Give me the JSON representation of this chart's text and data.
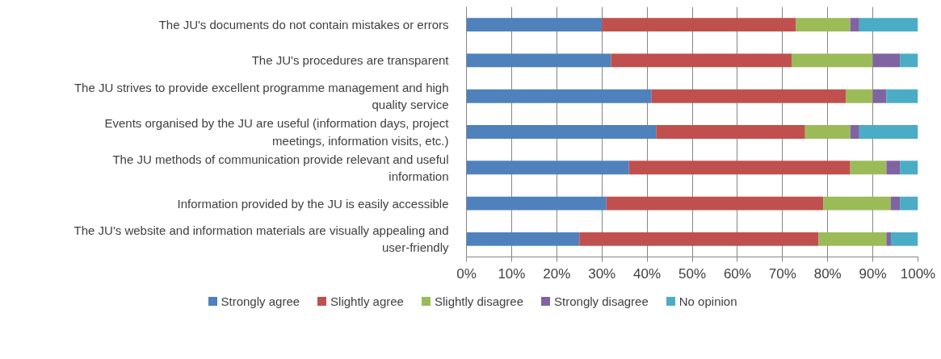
{
  "chart_data": {
    "type": "bar",
    "orientation": "horizontal",
    "stacked": true,
    "categories": [
      "The JU's documents do not contain mistakes or errors",
      "The JU's procedures are transparent",
      "The JU strives to provide excellent programme management and high quality service",
      "Events organised by the JU are useful (information days, project meetings, information visits, etc.)",
      "The JU methods of communication provide relevant and useful information",
      "Information provided by the JU is easily accessible",
      "The JU's website and information materials are visually appealing and user-friendly"
    ],
    "series": [
      {
        "name": "Strongly agree",
        "color": "#4f81bd",
        "values": [
          30,
          32,
          41,
          42,
          36,
          31,
          25
        ]
      },
      {
        "name": "Slightly agree",
        "color": "#c0504d",
        "values": [
          43,
          40,
          43,
          33,
          49,
          48,
          53
        ]
      },
      {
        "name": "Slightly disagree",
        "color": "#9bbb59",
        "values": [
          12,
          18,
          6,
          10,
          8,
          15,
          15
        ]
      },
      {
        "name": "Strongly disagree",
        "color": "#8064a2",
        "values": [
          2,
          6,
          3,
          2,
          3,
          2,
          1
        ]
      },
      {
        "name": "No opinion",
        "color": "#4bacc6",
        "values": [
          13,
          4,
          7,
          13,
          4,
          4,
          6
        ]
      }
    ],
    "xlim": [
      0,
      100
    ],
    "xticks": [
      {
        "value": 0,
        "label": "0%"
      },
      {
        "value": 10,
        "label": "10%"
      },
      {
        "value": 20,
        "label": "20%"
      },
      {
        "value": 30,
        "label": "30%"
      },
      {
        "value": 40,
        "label": "40%"
      },
      {
        "value": 50,
        "label": "50%"
      },
      {
        "value": 60,
        "label": "60%"
      },
      {
        "value": 70,
        "label": "70%"
      },
      {
        "value": 80,
        "label": "80%"
      },
      {
        "value": 90,
        "label": "90%"
      },
      {
        "value": 100,
        "label": "100%"
      }
    ],
    "grid": "x",
    "legend": "bottom"
  }
}
